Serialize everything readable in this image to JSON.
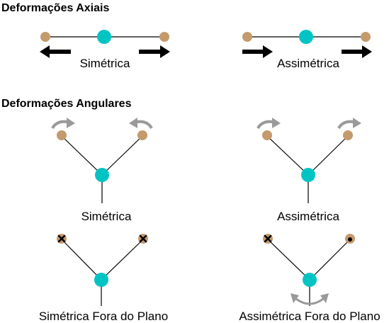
{
  "sections": {
    "axial_title": "Deformações Axiais",
    "angular_title": "Deformações Angulares"
  },
  "labels": {
    "axial_sym": "Simétrica",
    "axial_asym": "Assimétrica",
    "ang_sym": "Simétrica",
    "ang_asym": "Assimétrica",
    "oop_sym": "Simétrica Fora do Plano",
    "oop_asym": "Assimétrica Fora do Plano"
  },
  "colors": {
    "center_atom": "#00c4c4",
    "outer_atom": "#c49a6c",
    "bond": "#000000",
    "motion_arrow": "#000000",
    "rotation_arrow": "#9a9a9a"
  },
  "icons": {
    "into_plane": "x-mark",
    "out_of_plane": "dot-mark"
  }
}
